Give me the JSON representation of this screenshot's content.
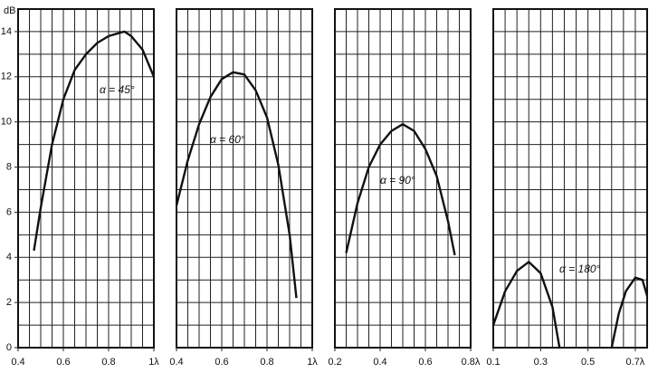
{
  "chart_data": [
    {
      "type": "line",
      "ylabel": "dB",
      "annotation": "α = 45°",
      "xlim": [
        0.4,
        1
      ],
      "ylim": [
        0,
        15
      ],
      "xticks": [
        0.4,
        0.6,
        0.8,
        {
          "value": 1,
          "label": "1λ"
        }
      ],
      "yticks": [
        0,
        2,
        4,
        6,
        8,
        10,
        12,
        14
      ],
      "xgrid": [
        0.45,
        0.5,
        0.55,
        0.6,
        0.65,
        0.7,
        0.75,
        0.8,
        0.85,
        0.9,
        0.95
      ],
      "ygrid": [
        1,
        2,
        3,
        4,
        5,
        6,
        7,
        8,
        9,
        10,
        11,
        12,
        13,
        14
      ],
      "x": [
        0.47,
        0.5,
        0.55,
        0.6,
        0.65,
        0.7,
        0.75,
        0.8,
        0.85,
        0.87,
        0.9,
        0.95,
        1.0
      ],
      "values": [
        4.3,
        6.2,
        9.0,
        11.0,
        12.3,
        13.0,
        13.5,
        13.8,
        13.95,
        14.0,
        13.8,
        13.2,
        12.0
      ]
    },
    {
      "type": "line",
      "annotation": "α = 60°",
      "xlim": [
        0.4,
        1
      ],
      "ylim": [
        0,
        15
      ],
      "xticks": [
        0.4,
        0.6,
        0.8,
        {
          "value": 1,
          "label": "1λ"
        }
      ],
      "xgrid": [
        0.45,
        0.5,
        0.55,
        0.6,
        0.65,
        0.7,
        0.75,
        0.8,
        0.85,
        0.9,
        0.95
      ],
      "ygrid": [
        1,
        2,
        3,
        4,
        5,
        6,
        7,
        8,
        9,
        10,
        11,
        12,
        13,
        14
      ],
      "x": [
        0.4,
        0.45,
        0.5,
        0.55,
        0.6,
        0.65,
        0.7,
        0.75,
        0.8,
        0.85,
        0.9,
        0.93
      ],
      "values": [
        6.3,
        8.3,
        9.9,
        11.1,
        11.9,
        12.2,
        12.1,
        11.4,
        10.2,
        8.1,
        5.0,
        2.2
      ]
    },
    {
      "type": "line",
      "annotation": "α = 90°",
      "xlim": [
        0.2,
        0.8
      ],
      "ylim": [
        0,
        15
      ],
      "xticks": [
        0.2,
        0.4,
        0.6,
        {
          "value": 0.8,
          "label": "0.8λ"
        }
      ],
      "xgrid": [
        0.25,
        0.3,
        0.35,
        0.4,
        0.45,
        0.5,
        0.55,
        0.6,
        0.65,
        0.7,
        0.75
      ],
      "ygrid": [
        1,
        2,
        3,
        4,
        5,
        6,
        7,
        8,
        9,
        10,
        11,
        12,
        13,
        14
      ],
      "x": [
        0.25,
        0.3,
        0.35,
        0.4,
        0.45,
        0.5,
        0.55,
        0.6,
        0.65,
        0.7,
        0.73
      ],
      "values": [
        4.2,
        6.4,
        8.0,
        9.0,
        9.6,
        9.9,
        9.6,
        8.8,
        7.6,
        5.6,
        4.1
      ]
    },
    {
      "type": "line",
      "annotation": "α = 180°",
      "xlim": [
        0.1,
        0.75
      ],
      "ylim": [
        0,
        15
      ],
      "xticks": [
        0.1,
        0.3,
        0.5,
        {
          "value": 0.7,
          "label": "0.7λ"
        }
      ],
      "xgrid": [
        0.15,
        0.2,
        0.25,
        0.3,
        0.35,
        0.4,
        0.45,
        0.5,
        0.55,
        0.6,
        0.65,
        0.7
      ],
      "ygrid": [
        1,
        2,
        3,
        4,
        5,
        6,
        7,
        8,
        9,
        10,
        11,
        12,
        13,
        14
      ],
      "x": [
        0.1,
        0.15,
        0.2,
        0.25,
        0.3,
        0.35,
        0.38,
        0.5,
        0.6,
        0.63,
        0.66,
        0.7,
        0.73,
        0.75
      ],
      "values": [
        1.0,
        2.5,
        3.4,
        3.8,
        3.3,
        1.8,
        0,
        null,
        0,
        1.5,
        2.5,
        3.1,
        3.0,
        2.3
      ]
    }
  ]
}
